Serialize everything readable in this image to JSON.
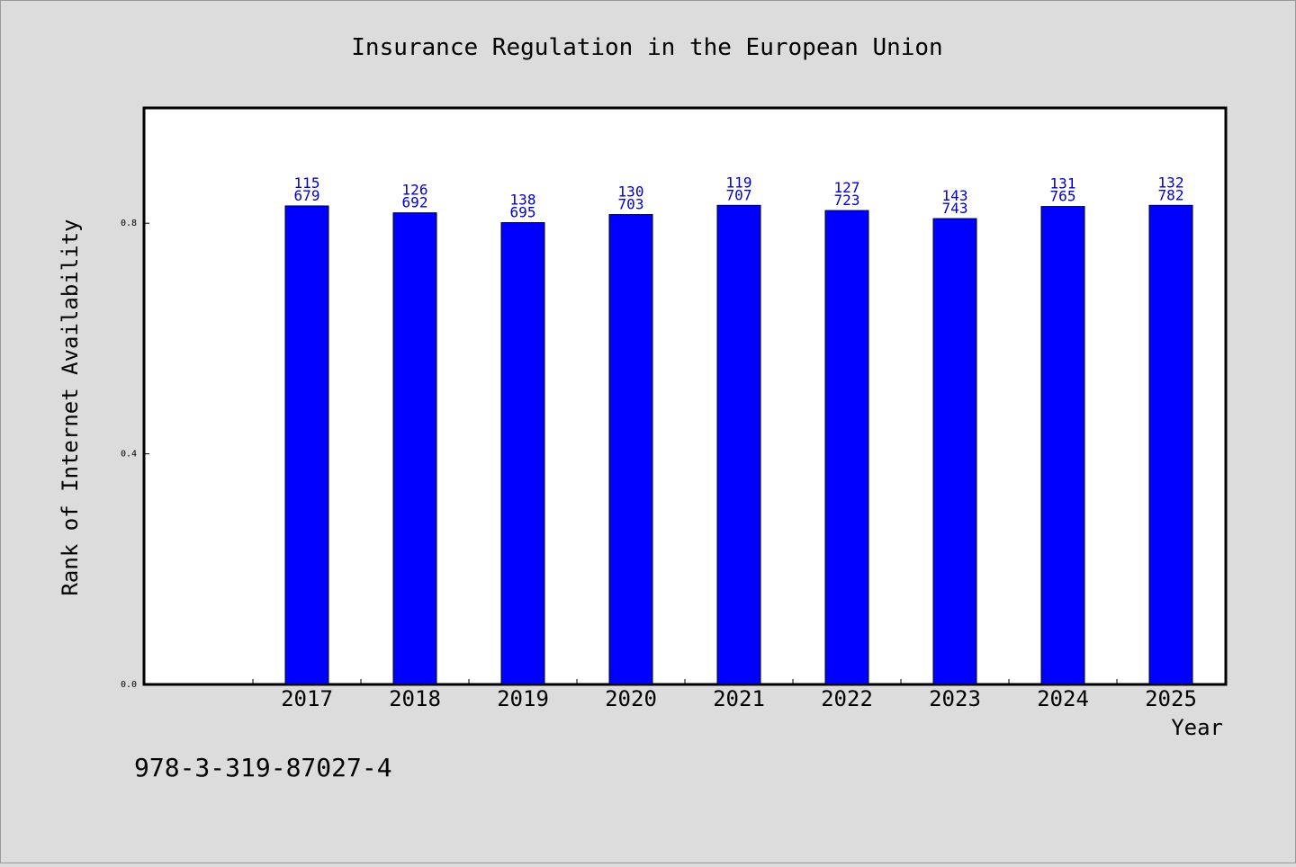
{
  "footer_code": "978-3-319-87027-4",
  "chart_data": {
    "type": "bar",
    "title": "Insurance Regulation in the European Union",
    "xlabel": "Year",
    "ylabel": "Rank of Internet Availability",
    "categories": [
      "2017",
      "2018",
      "2019",
      "2020",
      "2021",
      "2022",
      "2023",
      "2024",
      "2025"
    ],
    "values": [
      0.83,
      0.818,
      0.801,
      0.815,
      0.831,
      0.822,
      0.808,
      0.829,
      0.831
    ],
    "data_labels": [
      [
        "115",
        "679"
      ],
      [
        "126",
        "692"
      ],
      [
        "138",
        "695"
      ],
      [
        "130",
        "703"
      ],
      [
        "119",
        "707"
      ],
      [
        "127",
        "723"
      ],
      [
        "143",
        "743"
      ],
      [
        "131",
        "765"
      ],
      [
        "132",
        "782"
      ]
    ],
    "ylim": [
      0,
      1.0
    ],
    "yticks": [
      "0.0",
      "0.4",
      "0.8"
    ],
    "ytick_values": [
      0.0,
      0.4,
      0.8
    ],
    "bar_color": "#0000ff",
    "label_color": "#0000cc",
    "grid": false,
    "legend": "none"
  }
}
